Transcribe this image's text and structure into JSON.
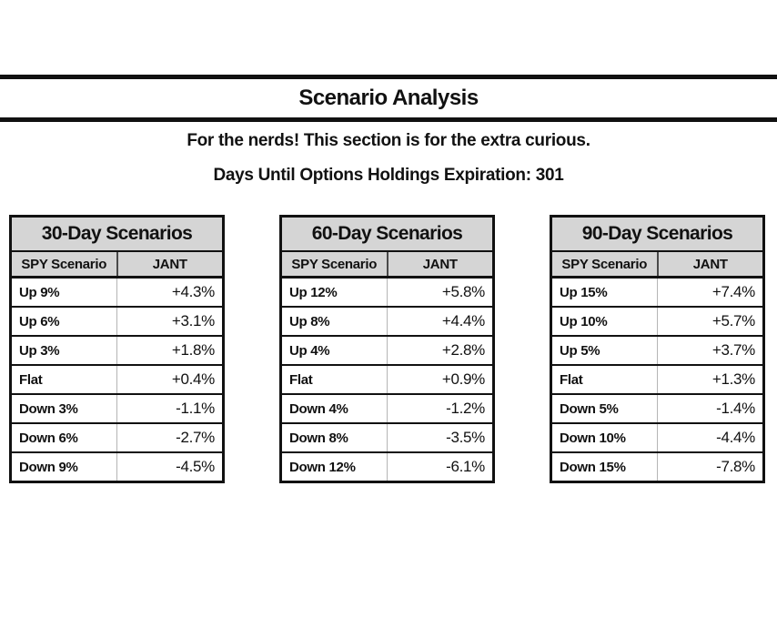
{
  "header": {
    "title": "Scenario Analysis",
    "subtitle": "For the nerds! This section is for the extra curious.",
    "expiration_line": "Days Until Options Holdings Expiration: 301",
    "days_until_expiration": 301
  },
  "columns": {
    "spy": "SPY Scenario",
    "jant": "JANT"
  },
  "colors": {
    "header_bg": "#d5d5d5",
    "border": "#111111",
    "body_divider": "#b5b5b5",
    "text": "#111111"
  },
  "tables": [
    {
      "title": "30-Day Scenarios",
      "rows": [
        {
          "spy": "Up 9%",
          "jant": "+4.3%"
        },
        {
          "spy": "Up 6%",
          "jant": "+3.1%"
        },
        {
          "spy": "Up 3%",
          "jant": "+1.8%"
        },
        {
          "spy": "Flat",
          "jant": "+0.4%"
        },
        {
          "spy": "Down 3%",
          "jant": "-1.1%"
        },
        {
          "spy": "Down 6%",
          "jant": "-2.7%"
        },
        {
          "spy": "Down 9%",
          "jant": "-4.5%"
        }
      ]
    },
    {
      "title": "60-Day Scenarios",
      "rows": [
        {
          "spy": "Up 12%",
          "jant": "+5.8%"
        },
        {
          "spy": "Up 8%",
          "jant": "+4.4%"
        },
        {
          "spy": "Up 4%",
          "jant": "+2.8%"
        },
        {
          "spy": "Flat",
          "jant": "+0.9%"
        },
        {
          "spy": "Down 4%",
          "jant": "-1.2%"
        },
        {
          "spy": "Down 8%",
          "jant": "-3.5%"
        },
        {
          "spy": "Down 12%",
          "jant": "-6.1%"
        }
      ]
    },
    {
      "title": "90-Day Scenarios",
      "rows": [
        {
          "spy": "Up 15%",
          "jant": "+7.4%"
        },
        {
          "spy": "Up 10%",
          "jant": "+5.7%"
        },
        {
          "spy": "Up 5%",
          "jant": "+3.7%"
        },
        {
          "spy": "Flat",
          "jant": "+1.3%"
        },
        {
          "spy": "Down 5%",
          "jant": "-1.4%"
        },
        {
          "spy": "Down 10%",
          "jant": "-4.4%"
        },
        {
          "spy": "Down 15%",
          "jant": "-7.8%"
        }
      ]
    }
  ]
}
